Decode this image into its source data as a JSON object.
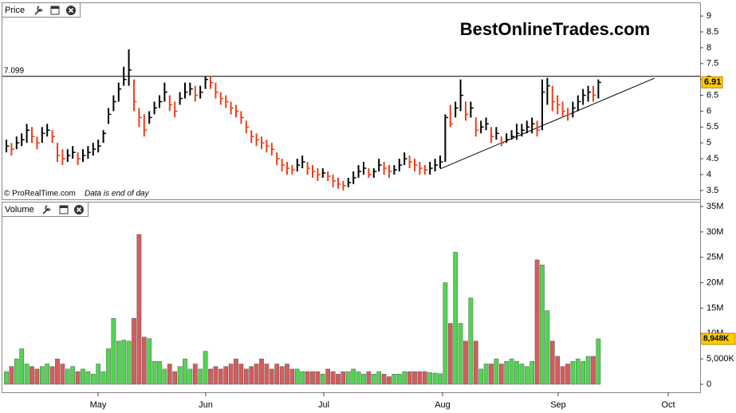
{
  "chart_data": [
    {
      "type": "ohlc",
      "panel_label": "Price",
      "title": "BestOnlineTrades.com",
      "source": "© ProRealTime.com",
      "note": "Data is end of day",
      "up_color": "#000000",
      "down_color": "#e8401c",
      "xlim": [
        -0.78,
        135.94
      ],
      "ylim": [
        3.22,
        9.38
      ],
      "yticks": [
        3.5,
        4,
        4.5,
        5,
        5.5,
        6,
        6.5,
        7,
        7.5,
        8,
        8.5,
        9
      ],
      "hline": 7.099,
      "trendline": {
        "x": [
          85,
          127
        ],
        "y": [
          4.18,
          7.04
        ]
      },
      "high": [
        5.1,
        5.0,
        5.2,
        5.3,
        5.6,
        5.5,
        5.2,
        5.5,
        5.6,
        5.4,
        5.0,
        4.8,
        4.8,
        4.9,
        4.7,
        4.8,
        4.9,
        5.0,
        5.1,
        5.4,
        6.1,
        6.5,
        6.9,
        7.4,
        7.95,
        7.0,
        6.1,
        5.9,
        6.0,
        6.3,
        6.5,
        6.9,
        6.5,
        6.3,
        6.6,
        6.9,
        6.9,
        6.8,
        6.8,
        7.1,
        7.1,
        6.9,
        6.6,
        6.5,
        6.3,
        6.2,
        6.0,
        5.7,
        5.4,
        5.3,
        5.2,
        5.1,
        5.0,
        4.7,
        4.5,
        4.4,
        4.3,
        4.5,
        4.6,
        4.4,
        4.3,
        4.2,
        4.2,
        4.1,
        4.0,
        3.9,
        3.8,
        3.9,
        4.1,
        4.3,
        4.4,
        4.2,
        4.2,
        4.5,
        4.4,
        4.3,
        4.3,
        4.5,
        4.7,
        4.6,
        4.5,
        4.4,
        4.3,
        4.4,
        4.5,
        4.6,
        5.9,
        6.2,
        6.3,
        7.0,
        6.3,
        6.3,
        5.8,
        5.7,
        5.8,
        5.5,
        5.5,
        5.2,
        5.3,
        5.4,
        5.6,
        5.6,
        5.7,
        5.8,
        5.7,
        7.0,
        7.05,
        6.8,
        6.5,
        6.3,
        6.1,
        6.3,
        6.5,
        6.7,
        6.8,
        6.8,
        7.0
      ],
      "low": [
        4.7,
        4.6,
        4.8,
        4.9,
        5.0,
        5.0,
        4.8,
        5.0,
        5.2,
        5.0,
        4.4,
        4.3,
        4.4,
        4.5,
        4.3,
        4.4,
        4.5,
        4.6,
        4.7,
        5.0,
        5.6,
        6.0,
        6.3,
        6.8,
        6.8,
        6.0,
        5.5,
        5.2,
        5.6,
        5.9,
        6.1,
        6.3,
        6.0,
        5.8,
        6.2,
        6.4,
        6.5,
        6.3,
        6.4,
        6.7,
        6.7,
        6.4,
        6.2,
        6.1,
        5.9,
        5.8,
        5.6,
        5.3,
        5.0,
        4.9,
        4.8,
        4.7,
        4.6,
        4.3,
        4.1,
        4.0,
        4.0,
        4.1,
        4.2,
        4.0,
        3.9,
        3.8,
        3.9,
        3.8,
        3.6,
        3.55,
        3.5,
        3.6,
        3.7,
        3.9,
        4.0,
        3.9,
        3.9,
        4.1,
        4.0,
        3.9,
        4.0,
        4.1,
        4.3,
        4.2,
        4.1,
        4.0,
        4.0,
        4.0,
        4.1,
        4.2,
        4.4,
        5.5,
        5.8,
        6.0,
        5.7,
        5.8,
        5.2,
        5.3,
        5.4,
        5.0,
        5.1,
        4.9,
        5.0,
        5.1,
        5.1,
        5.2,
        5.3,
        5.3,
        5.2,
        5.4,
        6.2,
        6.0,
        5.9,
        5.8,
        5.7,
        5.8,
        6.0,
        6.2,
        6.3,
        6.3,
        6.4
      ],
      "close": [
        4.9,
        4.8,
        5.0,
        5.1,
        5.4,
        5.2,
        5.0,
        5.3,
        5.4,
        5.2,
        4.6,
        4.5,
        4.6,
        4.7,
        4.5,
        4.6,
        4.7,
        4.8,
        4.9,
        5.3,
        5.9,
        6.3,
        6.7,
        7.0,
        7.3,
        6.3,
        5.8,
        5.4,
        5.8,
        6.1,
        6.3,
        6.6,
        6.2,
        6.0,
        6.4,
        6.6,
        6.7,
        6.5,
        6.6,
        7.0,
        6.9,
        6.6,
        6.4,
        6.3,
        6.1,
        6.0,
        5.8,
        5.5,
        5.2,
        5.1,
        5.0,
        4.9,
        4.8,
        4.5,
        4.3,
        4.2,
        4.15,
        4.3,
        4.4,
        4.2,
        4.1,
        4.0,
        4.05,
        3.95,
        3.8,
        3.7,
        3.65,
        3.75,
        3.9,
        4.1,
        4.2,
        4.0,
        4.1,
        4.3,
        4.2,
        4.1,
        4.15,
        4.3,
        4.5,
        4.4,
        4.3,
        4.2,
        4.15,
        4.2,
        4.3,
        4.4,
        5.8,
        5.6,
        6.1,
        6.5,
        5.9,
        6.1,
        5.4,
        5.5,
        5.6,
        5.2,
        5.3,
        5.0,
        5.1,
        5.2,
        5.3,
        5.4,
        5.5,
        5.6,
        5.4,
        6.6,
        6.8,
        6.3,
        6.2,
        6.0,
        5.9,
        6.1,
        6.3,
        6.5,
        6.6,
        6.5,
        6.91
      ]
    },
    {
      "type": "volume",
      "panel_label": "Volume",
      "up_color": "#4fd64f",
      "down_color": "#d65c5c",
      "xlim": [
        -0.78,
        135.94
      ],
      "ylim": [
        -1570000,
        35630000
      ],
      "xticks": [
        {
          "value": 17.97,
          "label": "May"
        },
        {
          "value": 39.06,
          "label": "Jun"
        },
        {
          "value": 62.19,
          "label": "Jul"
        },
        {
          "value": 85.47,
          "label": "Aug"
        },
        {
          "value": 108.13,
          "label": "Sep"
        },
        {
          "value": 129.69,
          "label": "Oct"
        }
      ],
      "yticks": [
        0,
        {
          "value": 5000000,
          "label": "5,000K"
        },
        {
          "value": 10000000,
          "label": "10M"
        },
        {
          "value": 15000000,
          "label": "15M"
        },
        {
          "value": 20000000,
          "label": "20M"
        },
        {
          "value": 25000000,
          "label": "25M"
        },
        {
          "value": 30000000,
          "label": "30M"
        },
        {
          "value": 35000000,
          "label": "35M"
        }
      ],
      "last_value_label": "8,948K",
      "values": [
        2500000,
        3500000,
        5000000,
        7000000,
        4000000,
        3500000,
        3000000,
        3500000,
        4000000,
        3500000,
        5000000,
        4000000,
        3000000,
        3500000,
        2500000,
        3000000,
        2500000,
        2000000,
        4000000,
        2500000,
        7000000,
        13000000,
        8500000,
        8700000,
        8500000,
        13000000,
        29500000,
        9300000,
        9000000,
        4500000,
        4500000,
        3000000,
        4000000,
        2500000,
        3500000,
        5000000,
        3000000,
        4000000,
        3000000,
        6500000,
        3000000,
        3500000,
        3000000,
        3500000,
        4000000,
        5000000,
        4000000,
        3000000,
        3500000,
        4000000,
        5000000,
        4000000,
        3000000,
        4000000,
        3500000,
        4000000,
        3000000,
        3000000,
        2500000,
        2500000,
        2500000,
        2500000,
        2000000,
        3000000,
        2500000,
        2000000,
        2500000,
        2500000,
        3000000,
        2500000,
        2000000,
        2500000,
        2000000,
        2500000,
        2000000,
        1500000,
        2000000,
        2000000,
        2500000,
        2500000,
        2500000,
        2500000,
        2500000,
        2300000,
        2200000,
        2100000,
        20000000,
        12000000,
        26000000,
        12000000,
        8500000,
        17000000,
        8500000,
        3000000,
        4000000,
        4000000,
        5000000,
        4000000,
        4500000,
        5000000,
        4500000,
        4000000,
        3500000,
        4500000,
        24500000,
        23500000,
        14500000,
        8500000,
        5500000,
        3500000,
        4000000,
        4500000,
        5000000,
        4500000,
        5500000,
        5500000,
        8948000
      ]
    }
  ]
}
